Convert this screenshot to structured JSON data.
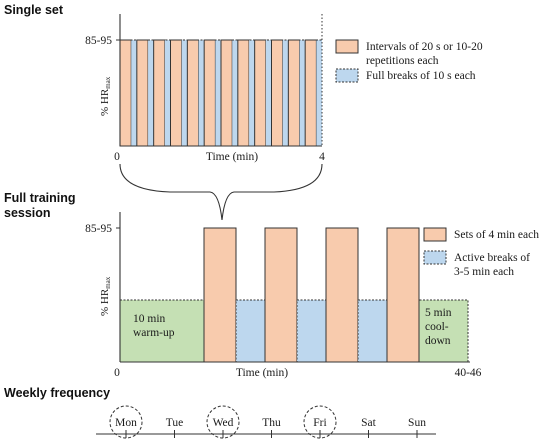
{
  "single_set": {
    "heading": "Single set",
    "y_axis_label": "% HR",
    "y_axis_subscript": "max",
    "y_tick": "85-95",
    "x_axis_label": "Time (min)",
    "x_start": "0",
    "x_end": "4",
    "intervals": 12,
    "legend": [
      {
        "line1": "Intervals of 20 s or 10-20",
        "line2": "repetitions each",
        "swatch": "orange"
      },
      {
        "line1": "Full breaks of 10 s each",
        "line2": "",
        "swatch": "blue"
      }
    ]
  },
  "full_session": {
    "heading_line1": "Full training",
    "heading_line2": "session",
    "y_axis_label": "% HR",
    "y_axis_subscript": "max",
    "y_tick": "85-95",
    "x_axis_label": "Time (min)",
    "x_start": "0",
    "x_end": "40-46",
    "sets": 4,
    "warmup_line1": "10 min",
    "warmup_line2": "warm-up",
    "cooldown_line1": "5 min",
    "cooldown_line2": "cool-",
    "cooldown_line3": "down",
    "legend": [
      {
        "line1": "Sets of 4 min each",
        "line2": "",
        "swatch": "orange"
      },
      {
        "line1": "Active breaks of",
        "line2": "3-5 min each",
        "swatch": "blue"
      }
    ]
  },
  "weekly": {
    "heading": "Weekly frequency",
    "days": [
      {
        "label": "Mon",
        "training": true
      },
      {
        "label": "Tue",
        "training": false
      },
      {
        "label": "Wed",
        "training": true
      },
      {
        "label": "Thu",
        "training": false
      },
      {
        "label": "Fri",
        "training": true
      },
      {
        "label": "Sat",
        "training": false
      },
      {
        "label": "Sun",
        "training": false
      }
    ]
  },
  "colors": {
    "orange_fill": "#f8cbad",
    "orange_stroke": "#333333",
    "blue_fill": "#bdd7ee",
    "green_fill": "#c5e0b4",
    "axis": "#333333"
  }
}
